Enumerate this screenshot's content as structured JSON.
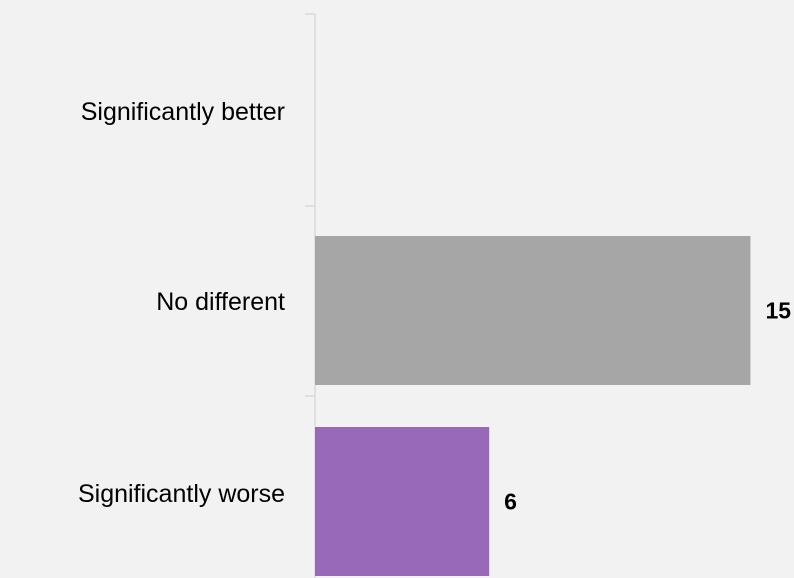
{
  "chart_data": {
    "type": "bar",
    "orientation": "horizontal",
    "categories": [
      "Significantly better",
      "No different",
      "Significantly worse"
    ],
    "values": [
      null,
      15,
      6
    ],
    "data_labels": [
      "",
      "15",
      "6"
    ],
    "colors": [
      "#a6a6a6",
      "#a6a6a6",
      "#9869b8"
    ],
    "xlim": [
      0,
      16.5
    ],
    "title": "",
    "xlabel": "",
    "ylabel": "",
    "grid": false,
    "legend": "none"
  }
}
